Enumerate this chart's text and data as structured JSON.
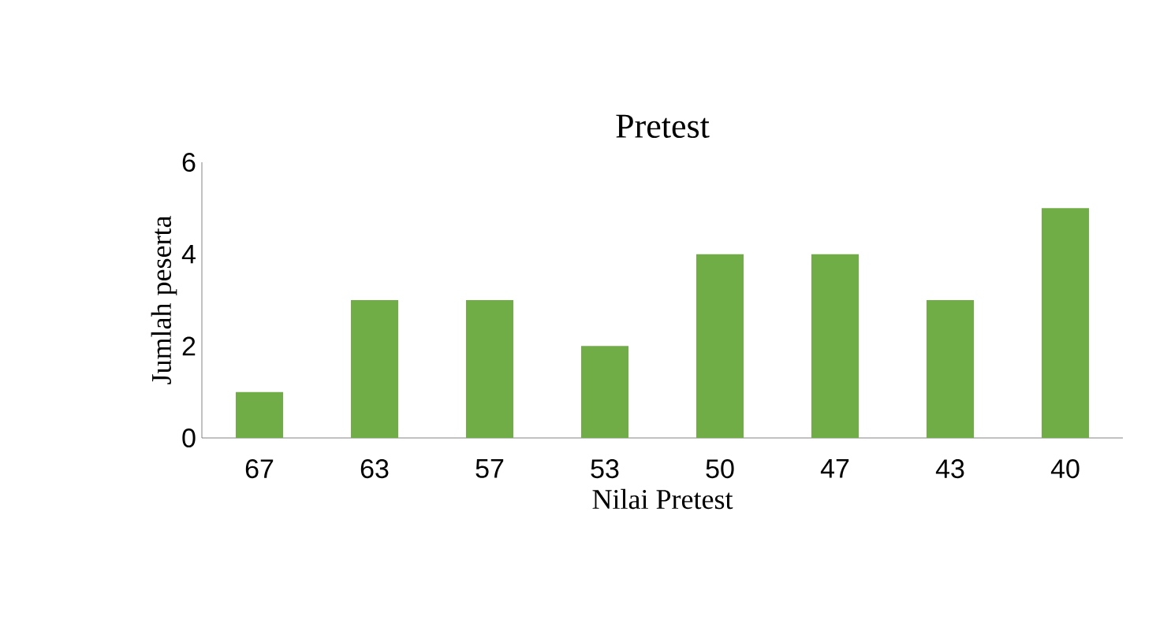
{
  "chart_data": {
    "type": "bar",
    "title": "Pretest",
    "xlabel": "Nilai Pretest",
    "ylabel": "Jumlah peserta",
    "categories": [
      "67",
      "63",
      "57",
      "53",
      "50",
      "47",
      "43",
      "40"
    ],
    "values": [
      1,
      3,
      3,
      2,
      4,
      4,
      3,
      5
    ],
    "color": "#70ad47",
    "ylim": [
      0,
      6
    ],
    "yticks": [
      0,
      2,
      4,
      6
    ]
  }
}
